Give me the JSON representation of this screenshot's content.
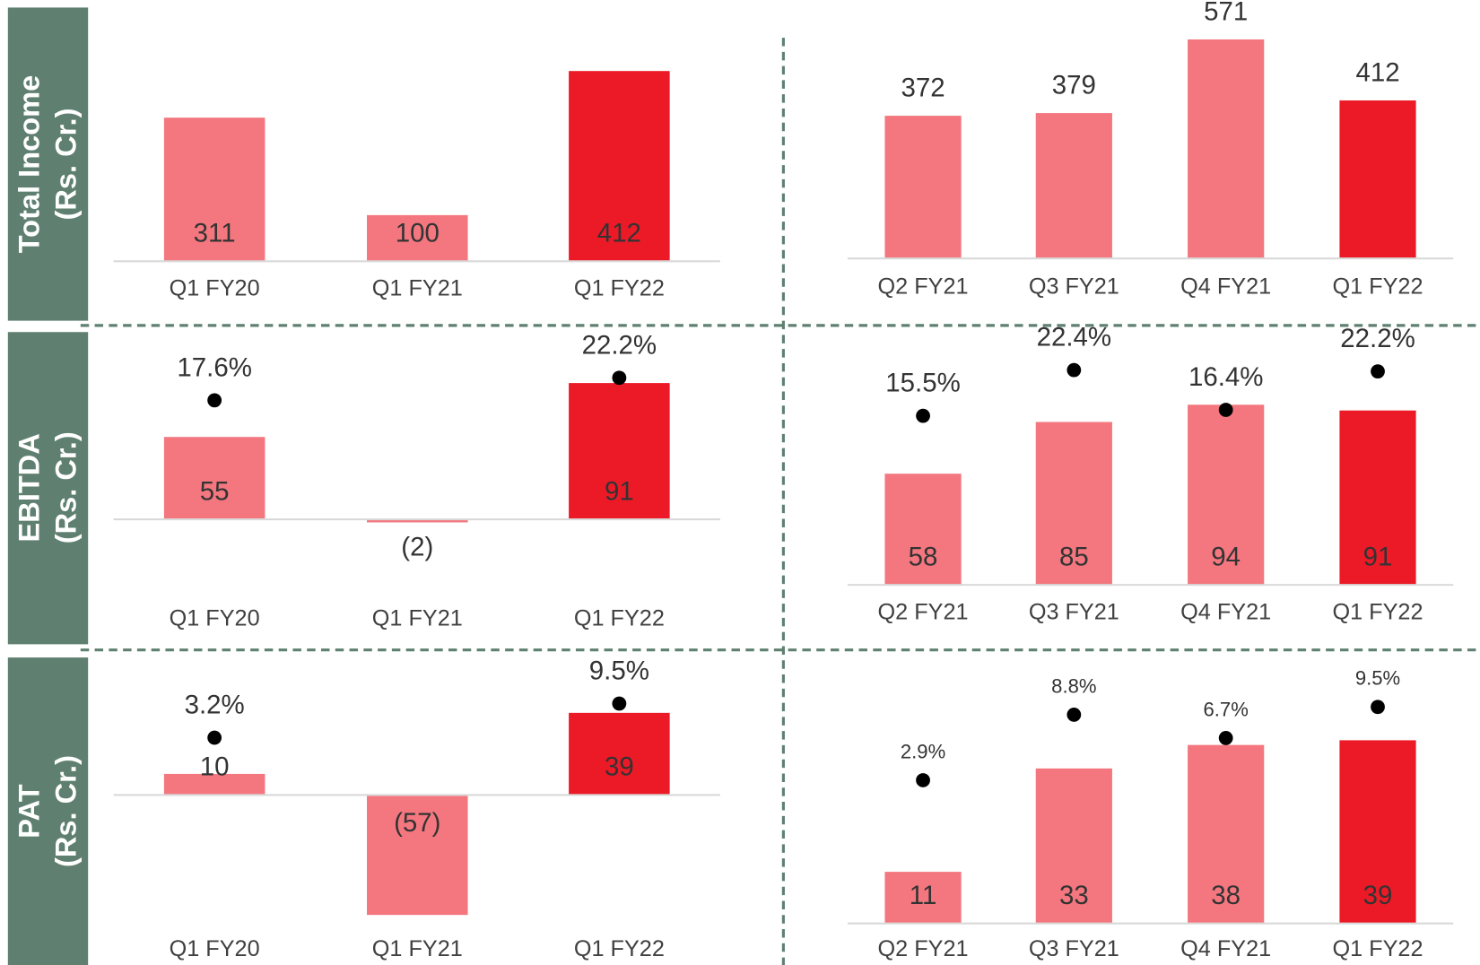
{
  "rows": [
    {
      "title": "Total Income",
      "unit": "(Rs. Cr.)"
    },
    {
      "title": "EBITDA",
      "unit": "(Rs. Cr.)"
    },
    {
      "title": "PAT",
      "unit": "(Rs. Cr.)"
    }
  ],
  "chart_data": [
    {
      "type": "bar",
      "categories": [
        "Q1 FY20",
        "Q1 FY21",
        "Q1 FY22"
      ],
      "ylim": [
        0,
        480
      ],
      "value_label_position": "base",
      "series": [
        {
          "values": [
            311,
            100,
            412
          ],
          "colors": [
            "#f4777f",
            "#f4777f",
            "#ec1a27"
          ]
        }
      ]
    },
    {
      "type": "bar",
      "categories": [
        "Q2 FY21",
        "Q3 FY21",
        "Q4 FY21",
        "Q1 FY22"
      ],
      "ylim": [
        0,
        600
      ],
      "value_label_position": "top",
      "series": [
        {
          "values": [
            372,
            379,
            571,
            412
          ],
          "colors": [
            "#f4777f",
            "#f4777f",
            "#f4777f",
            "#ec1a27"
          ]
        }
      ]
    },
    {
      "type": "bar",
      "categories": [
        "Q1 FY20",
        "Q1 FY21",
        "Q1 FY22"
      ],
      "ylim": [
        -50,
        120
      ],
      "y2lim": [
        -22,
        30
      ],
      "value_label_position": "base",
      "series": [
        {
          "values": [
            55,
            -2,
            91
          ],
          "value_labels": [
            "55",
            "(2)",
            "91"
          ],
          "colors": [
            "#f4777f",
            "#f4777f",
            "#ec1a27"
          ]
        },
        {
          "axis": "y2",
          "color": "#000000",
          "values": [
            17.6,
            null,
            22.2
          ],
          "value_labels": [
            "17.6%",
            null,
            "22.2%"
          ]
        }
      ]
    },
    {
      "type": "bar",
      "categories": [
        "Q2 FY21",
        "Q3 FY21",
        "Q4 FY21",
        "Q1 FY22"
      ],
      "ylim": [
        0,
        128
      ],
      "y2lim": [
        -10,
        27
      ],
      "value_label_position": "base",
      "series": [
        {
          "values": [
            58,
            85,
            94,
            91
          ],
          "colors": [
            "#f4777f",
            "#f4777f",
            "#f4777f",
            "#ec1a27"
          ]
        },
        {
          "axis": "y2",
          "color": "#000000",
          "values": [
            15.5,
            22.4,
            16.4,
            22.2
          ],
          "value_labels": [
            "15.5%",
            "22.4%",
            "16.4%",
            "22.2%"
          ]
        }
      ]
    },
    {
      "type": "bar",
      "categories": [
        "Q1 FY20",
        "Q1 FY21",
        "Q1 FY22"
      ],
      "ylim": [
        -66,
        55
      ],
      "y2lim": [
        -33,
        14
      ],
      "value_label_position": "base",
      "series": [
        {
          "values": [
            10,
            -57,
            39
          ],
          "value_labels": [
            "10",
            "(57)",
            "39"
          ],
          "colors": [
            "#f4777f",
            "#f4777f",
            "#ec1a27"
          ]
        },
        {
          "axis": "y2",
          "color": "#000000",
          "values": [
            3.2,
            null,
            9.5
          ],
          "value_labels": [
            "3.2%",
            null,
            "9.5%"
          ]
        }
      ]
    },
    {
      "type": "bar",
      "categories": [
        "Q2 FY21",
        "Q3 FY21",
        "Q4 FY21",
        "Q1 FY22"
      ],
      "ylim": [
        0,
        52
      ],
      "y2lim": [
        -10,
        12
      ],
      "value_label_position": "base",
      "series": [
        {
          "values": [
            11,
            33,
            38,
            39
          ],
          "colors": [
            "#f4777f",
            "#f4777f",
            "#f4777f",
            "#ec1a27"
          ]
        },
        {
          "axis": "y2",
          "color": "#000000",
          "values": [
            2.9,
            8.8,
            6.7,
            9.5
          ],
          "value_labels": [
            "2.9%",
            "8.8%",
            "6.7%",
            "9.5%"
          ]
        }
      ]
    }
  ]
}
